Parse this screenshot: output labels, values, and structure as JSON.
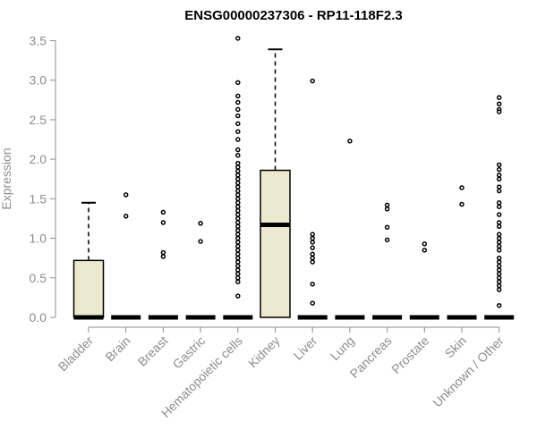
{
  "chart_data": {
    "type": "box",
    "title": "ENSG00000237306 - RP11-118F2.3",
    "ylabel": "Expression",
    "xlabel": "",
    "ylim": [
      0,
      3.5
    ],
    "yticks": [
      "0.0",
      "0.5",
      "1.0",
      "1.5",
      "2.0",
      "2.5",
      "3.0",
      "3.5"
    ],
    "box_fill": "#ede8d0",
    "categories": [
      {
        "name": "Bladder",
        "q1": 0,
        "median": 0,
        "q3": 0.72,
        "whisker_low": 0,
        "whisker_high": 1.45,
        "outliers": []
      },
      {
        "name": "Brain",
        "q1": 0,
        "median": 0,
        "q3": 0,
        "whisker_low": 0,
        "whisker_high": 0,
        "outliers": [
          1.55,
          1.28
        ]
      },
      {
        "name": "Breast",
        "q1": 0,
        "median": 0,
        "q3": 0,
        "whisker_low": 0,
        "whisker_high": 0,
        "outliers": [
          1.33,
          1.2,
          0.82,
          0.77
        ]
      },
      {
        "name": "Gastric",
        "q1": 0,
        "median": 0,
        "q3": 0,
        "whisker_low": 0,
        "whisker_high": 0,
        "outliers": [
          1.19,
          0.96
        ]
      },
      {
        "name": "Hematopoietic cells",
        "q1": 0,
        "median": 0,
        "q3": 0,
        "whisker_low": 0,
        "whisker_high": 0,
        "outliers": [
          3.53,
          2.97,
          2.8,
          2.72,
          2.63,
          2.55,
          2.45,
          2.35,
          2.25,
          2.12,
          2.05,
          1.95,
          1.9,
          1.85,
          1.8,
          1.75,
          1.7,
          1.65,
          1.6,
          1.55,
          1.5,
          1.45,
          1.4,
          1.35,
          1.3,
          1.25,
          1.2,
          1.15,
          1.1,
          1.05,
          1.0,
          0.95,
          0.9,
          0.85,
          0.8,
          0.75,
          0.7,
          0.65,
          0.6,
          0.55,
          0.5,
          0.45,
          0.27
        ]
      },
      {
        "name": "Kidney",
        "q1": 0,
        "median": 1.17,
        "q3": 1.86,
        "whisker_low": 0,
        "whisker_high": 3.39,
        "outliers": []
      },
      {
        "name": "Liver",
        "q1": 0,
        "median": 0,
        "q3": 0,
        "whisker_low": 0,
        "whisker_high": 0,
        "outliers": [
          2.99,
          1.05,
          1.0,
          0.95,
          0.88,
          0.8,
          0.75,
          0.7,
          0.42,
          0.18
        ]
      },
      {
        "name": "Lung",
        "q1": 0,
        "median": 0,
        "q3": 0,
        "whisker_low": 0,
        "whisker_high": 0,
        "outliers": [
          2.23
        ]
      },
      {
        "name": "Pancreas",
        "q1": 0,
        "median": 0,
        "q3": 0,
        "whisker_low": 0,
        "whisker_high": 0,
        "outliers": [
          1.42,
          1.37,
          1.14,
          0.98
        ]
      },
      {
        "name": "Prostate",
        "q1": 0,
        "median": 0,
        "q3": 0,
        "whisker_low": 0,
        "whisker_high": 0,
        "outliers": [
          0.93,
          0.85
        ]
      },
      {
        "name": "Skin",
        "q1": 0,
        "median": 0,
        "q3": 0,
        "whisker_low": 0,
        "whisker_high": 0,
        "outliers": [
          1.64,
          1.43
        ]
      },
      {
        "name": "Unknown / Other",
        "q1": 0,
        "median": 0,
        "q3": 0,
        "whisker_low": 0,
        "whisker_high": 0,
        "outliers": [
          2.78,
          2.7,
          2.63,
          2.6,
          1.93,
          1.87,
          1.8,
          1.75,
          1.65,
          1.6,
          1.45,
          1.4,
          1.3,
          1.2,
          1.15,
          1.05,
          1.0,
          0.95,
          0.9,
          0.85,
          0.75,
          0.7,
          0.65,
          0.6,
          0.55,
          0.5,
          0.45,
          0.4,
          0.35,
          0.15
        ]
      }
    ]
  }
}
